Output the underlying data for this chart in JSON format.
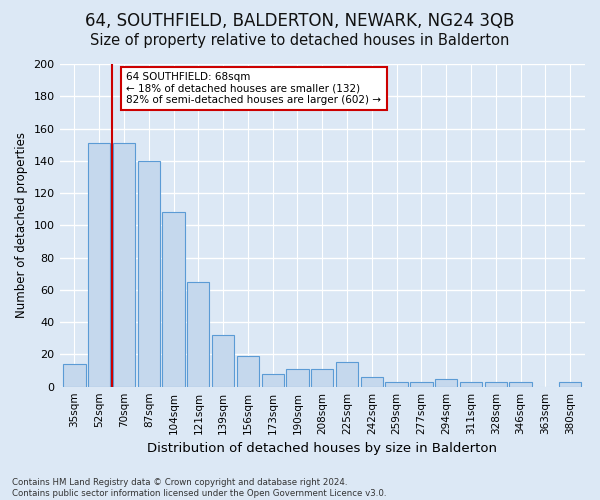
{
  "title": "64, SOUTHFIELD, BALDERTON, NEWARK, NG24 3QB",
  "subtitle": "Size of property relative to detached houses in Balderton",
  "xlabel": "Distribution of detached houses by size in Balderton",
  "ylabel": "Number of detached properties",
  "categories": [
    "35sqm",
    "52sqm",
    "70sqm",
    "87sqm",
    "104sqm",
    "121sqm",
    "139sqm",
    "156sqm",
    "173sqm",
    "190sqm",
    "208sqm",
    "225sqm",
    "242sqm",
    "259sqm",
    "277sqm",
    "294sqm",
    "311sqm",
    "328sqm",
    "346sqm",
    "363sqm",
    "380sqm"
  ],
  "values": [
    14,
    151,
    151,
    140,
    108,
    65,
    32,
    19,
    8,
    11,
    11,
    15,
    6,
    3,
    3,
    5,
    3,
    3,
    3,
    0,
    3
  ],
  "bar_color": "#c5d8ed",
  "bar_edge_color": "#5b9bd5",
  "vline_color": "#cc0000",
  "annotation_text": "64 SOUTHFIELD: 68sqm\n← 18% of detached houses are smaller (132)\n82% of semi-detached houses are larger (602) →",
  "annotation_box_color": "#ffffff",
  "annotation_box_edge": "#cc0000",
  "bg_color": "#dce8f5",
  "plot_bg_color": "#dce8f5",
  "grid_color": "#ffffff",
  "ylim": [
    0,
    200
  ],
  "yticks": [
    0,
    20,
    40,
    60,
    80,
    100,
    120,
    140,
    160,
    180,
    200
  ],
  "footnote": "Contains HM Land Registry data © Crown copyright and database right 2024.\nContains public sector information licensed under the Open Government Licence v3.0.",
  "title_fontsize": 12,
  "subtitle_fontsize": 10.5,
  "xlabel_fontsize": 9.5,
  "ylabel_fontsize": 8.5
}
